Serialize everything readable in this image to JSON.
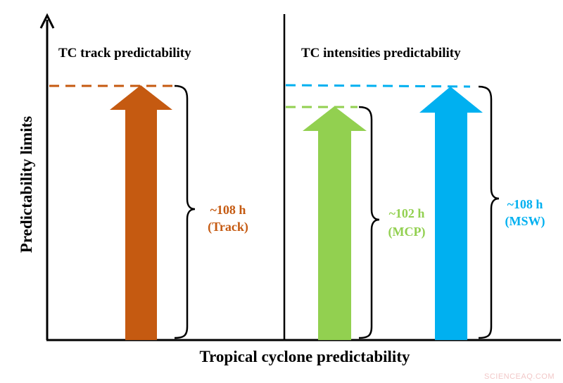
{
  "axes": {
    "y_label": "Predictability limits",
    "x_label": "Tropical cyclone predictability"
  },
  "panels": {
    "left": {
      "title": "TC track predictability"
    },
    "right": {
      "title": "TC intensities predictability"
    }
  },
  "arrows": [
    {
      "id": "track",
      "value": "~108 h",
      "tag": "(Track)",
      "color": "#c55a11"
    },
    {
      "id": "mcp",
      "value": "~102 h",
      "tag": "(MCP)",
      "color": "#92d050"
    },
    {
      "id": "msw",
      "value": "~108 h",
      "tag": "(MSW)",
      "color": "#00b0f0"
    }
  ],
  "watermark": "SCIENCEAQ.COM"
}
